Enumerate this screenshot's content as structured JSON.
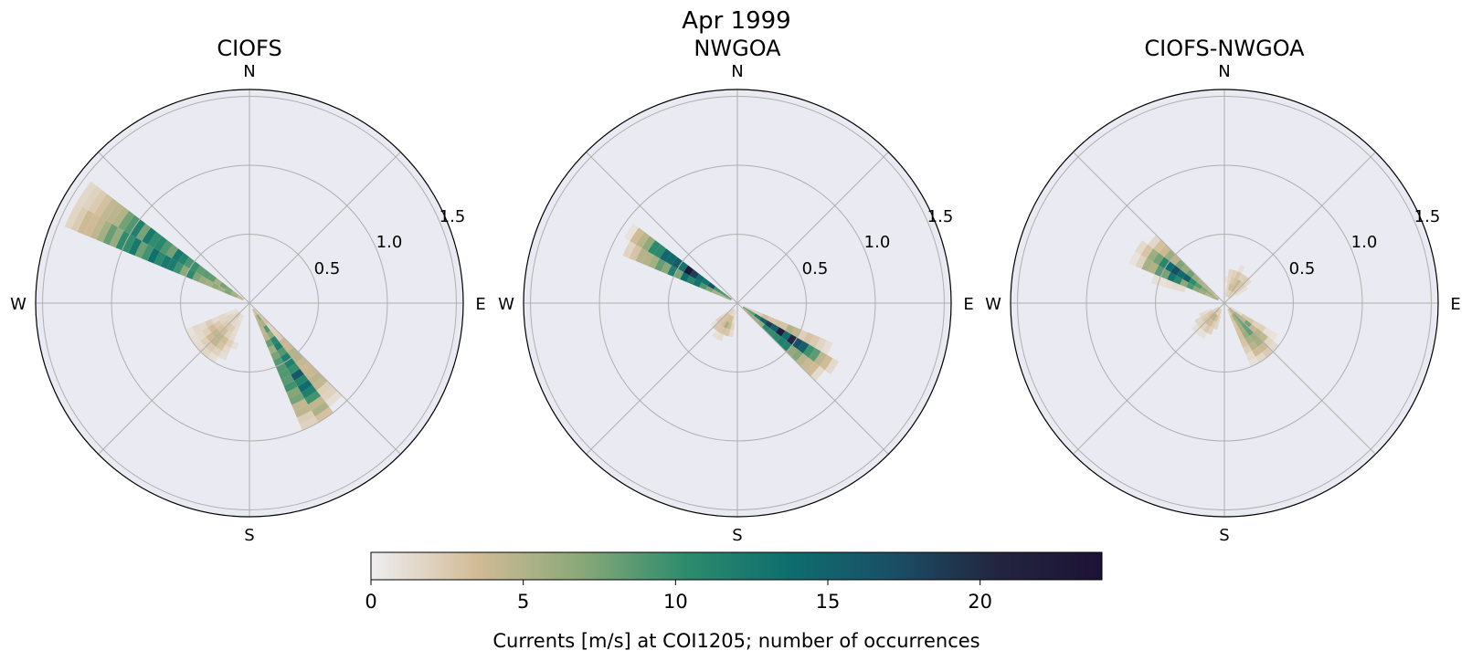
{
  "figure_title": "Apr 1999",
  "colorbar": {
    "label": "Currents [m/s] at COI1205; number of occurrences",
    "min": 0,
    "max": 24,
    "ticks": [
      "0",
      "5",
      "10",
      "15",
      "20"
    ],
    "tick_values": [
      0,
      5,
      10,
      15,
      20
    ],
    "colormap_stops": [
      "#efeef1",
      "#d2bb97",
      "#8aa878",
      "#2e8c6d",
      "#0e6e6e",
      "#1a4f66",
      "#23253f",
      "#1c1236"
    ]
  },
  "chart_data": [
    {
      "type": "polar-histogram",
      "title": "CIOFS",
      "direction_labels": [
        "N",
        "E",
        "S",
        "W"
      ],
      "radial_ticks": [
        "0.5",
        "1.0",
        "1.5"
      ],
      "radial_tick_values": [
        0.5,
        1.0,
        1.5
      ],
      "rmax": 1.55,
      "grid": true,
      "bin_width_deg": 7.5,
      "radial_bin": 0.05,
      "lobes": [
        {
          "direction_deg": 300,
          "rmin": 0.05,
          "rmax": 1.5,
          "peak_r": 0.8,
          "peak_count": 15,
          "width_deg": 22
        },
        {
          "direction_deg": 148,
          "rmin": 0.05,
          "rmax": 1.05,
          "peak_r": 0.65,
          "peak_count": 14,
          "width_deg": 24
        },
        {
          "direction_deg": 225,
          "rmin": 0.1,
          "rmax": 0.55,
          "peak_r": 0.35,
          "peak_count": 4,
          "width_deg": 60
        }
      ]
    },
    {
      "type": "polar-histogram",
      "title": "NWGOA",
      "direction_labels": [
        "N",
        "E",
        "S",
        "W"
      ],
      "radial_ticks": [
        "0.5",
        "1.0",
        "1.5"
      ],
      "radial_tick_values": [
        0.5,
        1.0,
        1.5
      ],
      "rmax": 1.55,
      "grid": true,
      "bin_width_deg": 7.5,
      "radial_bin": 0.05,
      "lobes": [
        {
          "direction_deg": 302,
          "rmin": 0.05,
          "rmax": 0.95,
          "peak_r": 0.38,
          "peak_count": 24,
          "width_deg": 18
        },
        {
          "direction_deg": 125,
          "rmin": 0.05,
          "rmax": 0.85,
          "peak_r": 0.4,
          "peak_count": 21,
          "width_deg": 20
        },
        {
          "direction_deg": 210,
          "rmin": 0.05,
          "rmax": 0.3,
          "peak_r": 0.18,
          "peak_count": 5,
          "width_deg": 50
        }
      ]
    },
    {
      "type": "polar-histogram",
      "title": "CIOFS-NWGOA",
      "direction_labels": [
        "N",
        "E",
        "S",
        "W"
      ],
      "radial_ticks": [
        "0.5",
        "1.0",
        "1.5"
      ],
      "radial_tick_values": [
        0.5,
        1.0,
        1.5
      ],
      "rmax": 1.55,
      "grid": true,
      "bin_width_deg": 7.5,
      "radial_bin": 0.05,
      "lobes": [
        {
          "direction_deg": 302,
          "rmin": 0.05,
          "rmax": 0.75,
          "peak_r": 0.42,
          "peak_count": 15,
          "width_deg": 28
        },
        {
          "direction_deg": 140,
          "rmin": 0.05,
          "rmax": 0.55,
          "peak_r": 0.2,
          "peak_count": 9,
          "width_deg": 40
        },
        {
          "direction_deg": 30,
          "rmin": 0.05,
          "rmax": 0.3,
          "peak_r": 0.15,
          "peak_count": 5,
          "width_deg": 60
        },
        {
          "direction_deg": 220,
          "rmin": 0.05,
          "rmax": 0.3,
          "peak_r": 0.15,
          "peak_count": 5,
          "width_deg": 60
        }
      ]
    }
  ]
}
